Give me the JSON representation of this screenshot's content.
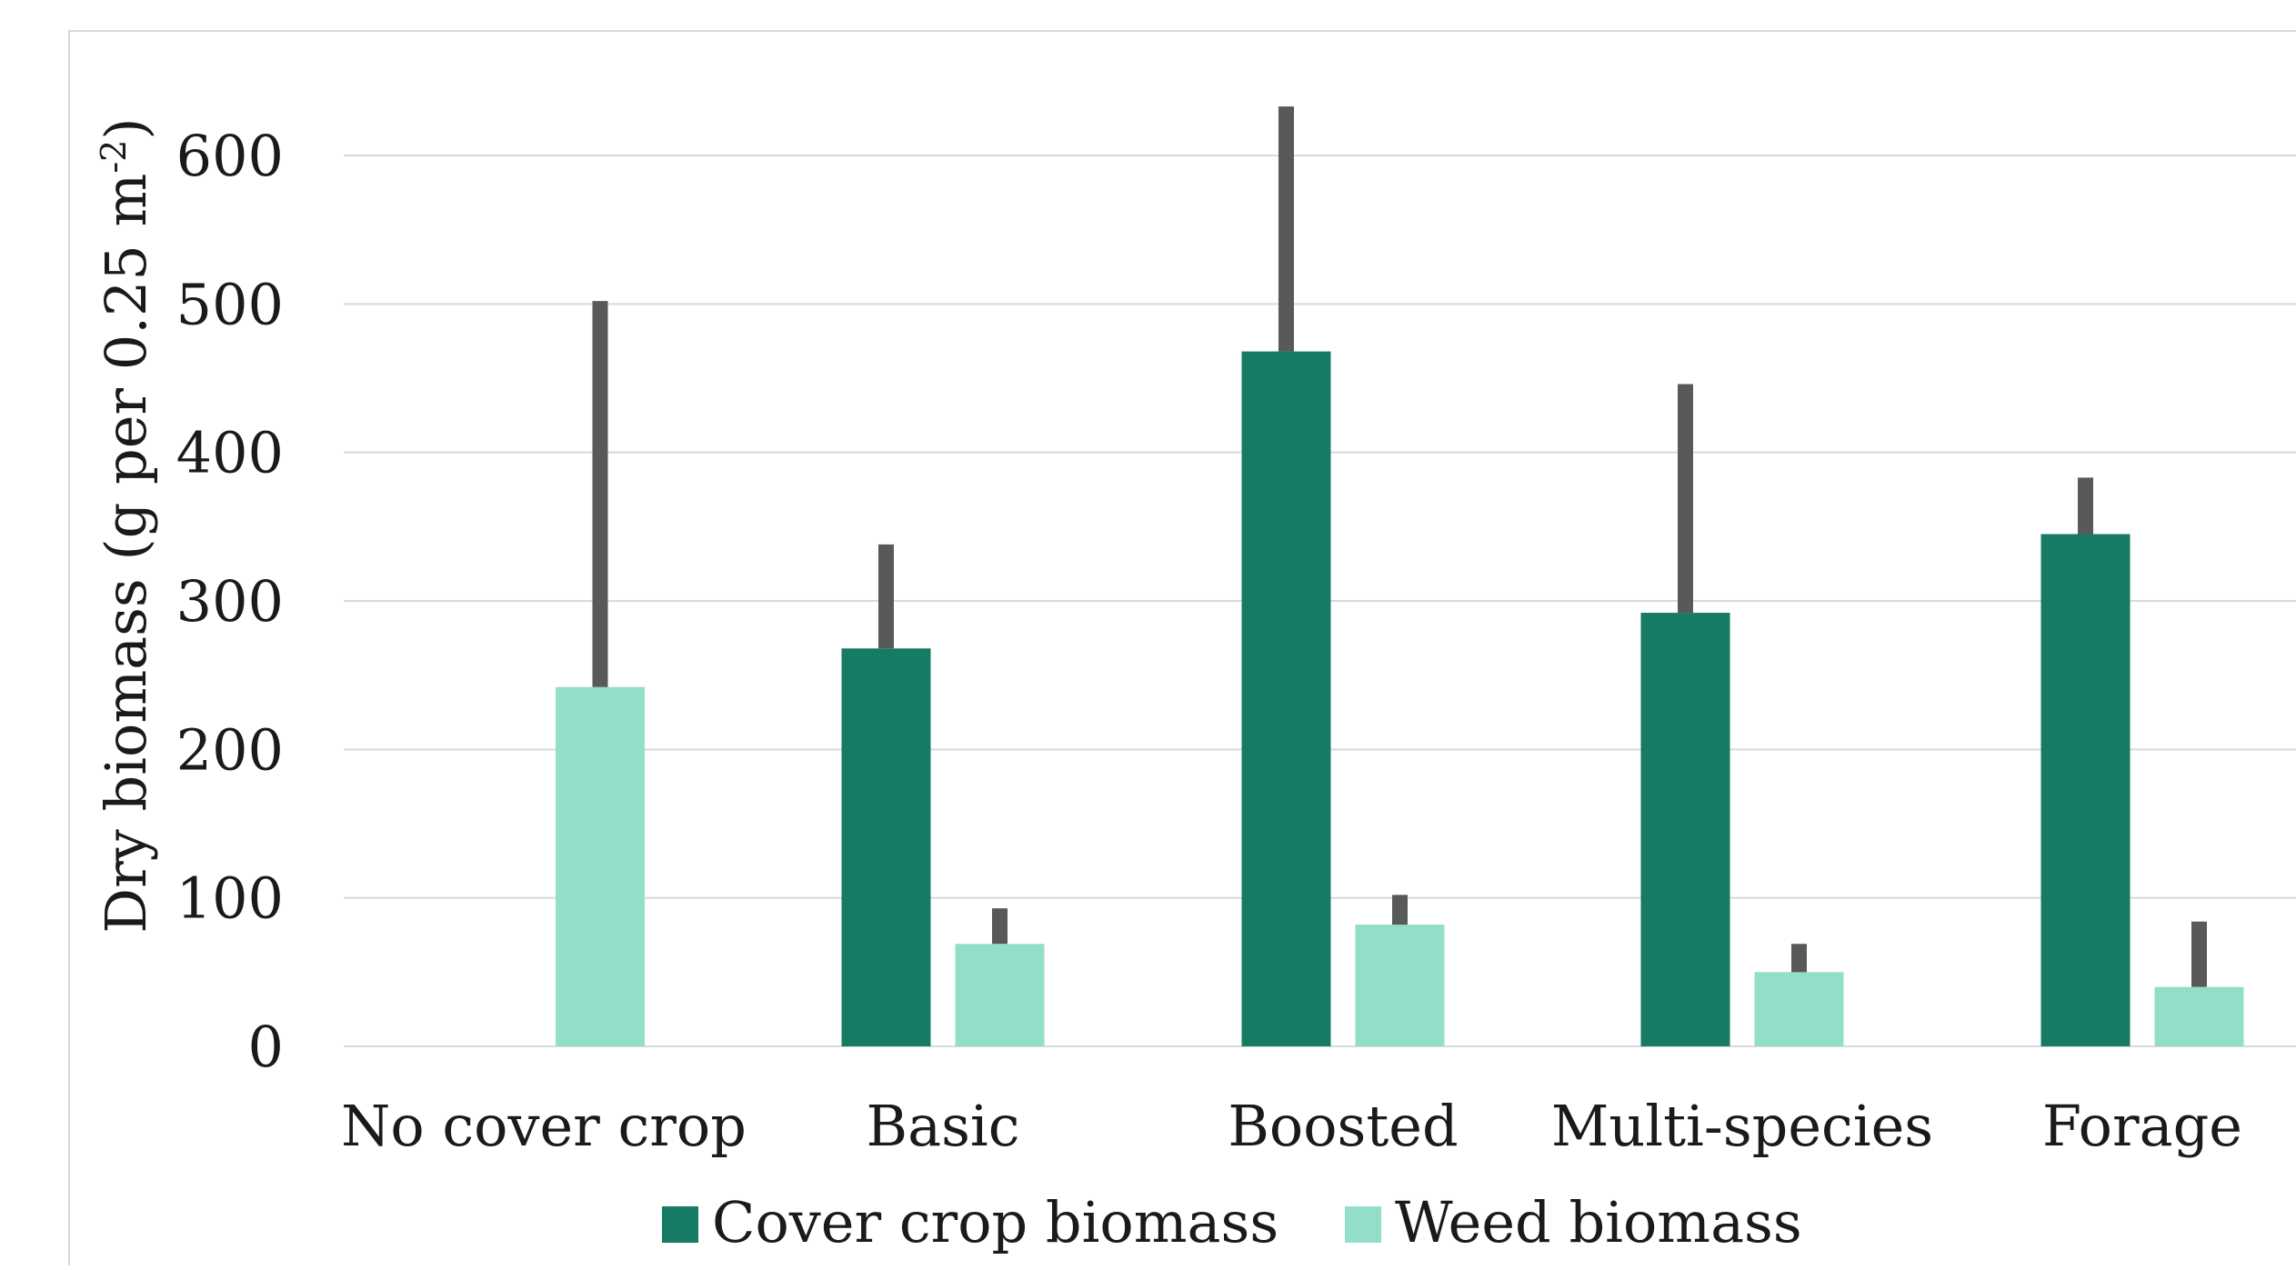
{
  "chart_data": {
    "type": "bar",
    "title": "",
    "xlabel": "",
    "ylabel": "Dry biomass (g per 0.25 m",
    "ylabel_superscript": "-2",
    "ylabel_suffix": ")",
    "ylim": [
      0,
      600
    ],
    "yticks": [
      "0",
      "100",
      "200",
      "300",
      "400",
      "500",
      "600"
    ],
    "grid": true,
    "legend_position": "bottom",
    "categories": [
      "No cover crop",
      "Basic",
      "Boosted",
      "Multi-species",
      "Forage"
    ],
    "series": [
      {
        "name": "Cover crop biomass",
        "color": "#167a65",
        "values": [
          null,
          268,
          468,
          292,
          345
        ],
        "error": [
          null,
          70,
          165,
          154,
          38
        ]
      },
      {
        "name": "Weed biomass",
        "color": "#93dec8",
        "values": [
          242,
          69,
          82,
          50,
          40
        ],
        "error": [
          260,
          24,
          20,
          19,
          44
        ]
      }
    ],
    "errorbar_color": "#595959",
    "gridline_color": "#d9d9d9"
  }
}
